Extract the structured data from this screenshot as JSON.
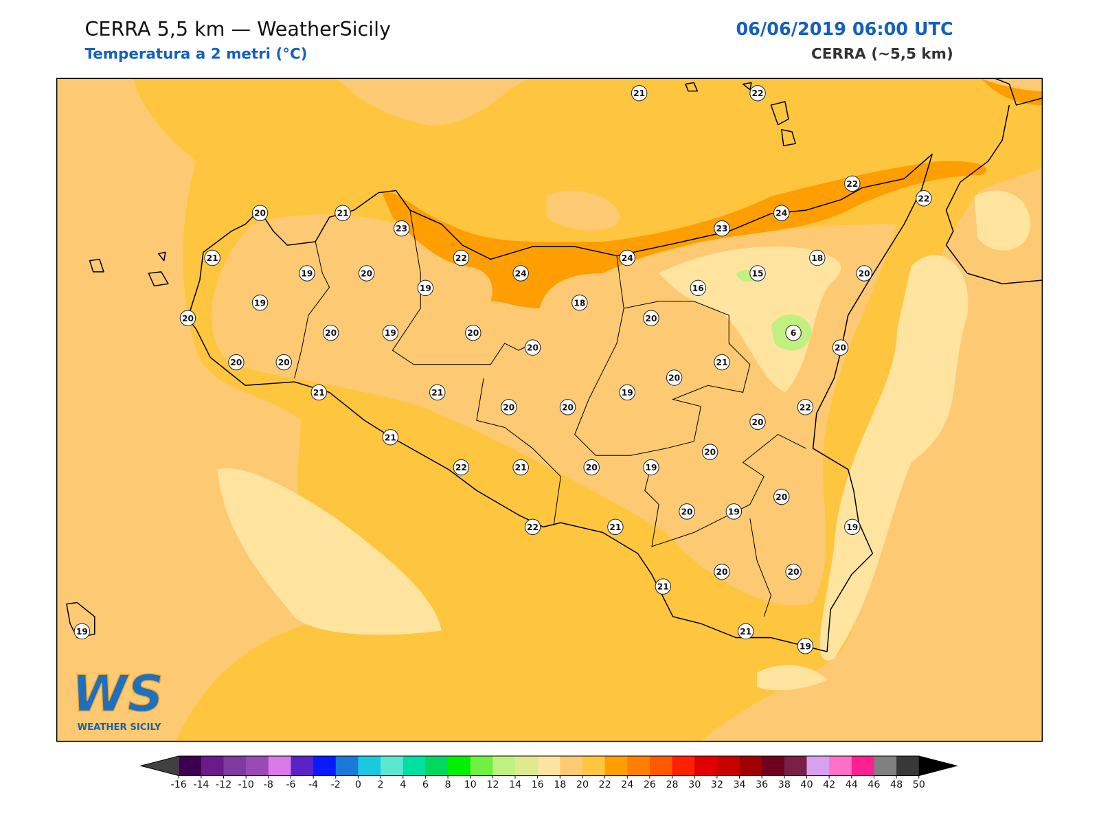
{
  "header": {
    "title": "CERRA 5,5 km — WeatherSicily",
    "subtitle": "Temperatura a 2 metri (°C)",
    "date": "06/06/2019 06:00 UTC",
    "model": "CERRA (~5,5 km)"
  },
  "stations": {
    "values": [
      21,
      22,
      20,
      21,
      23,
      22,
      22,
      24,
      23,
      21,
      19,
      20,
      22,
      24,
      24,
      18,
      15,
      20,
      19,
      16,
      19,
      18,
      20,
      20,
      6,
      20,
      19,
      20,
      20,
      20,
      20,
      20,
      21,
      20,
      21,
      21,
      19,
      22,
      20,
      20,
      20,
      21,
      20,
      22,
      21,
      20,
      19,
      20,
      20,
      19,
      19,
      22,
      21,
      20,
      20,
      21,
      21,
      19,
      19
    ]
  },
  "colorbar": {
    "ticks": [
      -16,
      -14,
      -12,
      -10,
      -8,
      -6,
      -4,
      -2,
      0,
      2,
      4,
      6,
      8,
      10,
      12,
      14,
      16,
      18,
      20,
      22,
      24,
      26,
      28,
      30,
      32,
      34,
      36,
      38,
      40,
      42,
      44,
      46,
      48,
      50
    ],
    "colors": [
      "#3d0050",
      "#6a1a8a",
      "#7f3aa0",
      "#9a4ab5",
      "#d97ae8",
      "#5a23c8",
      "#0a1aff",
      "#1a7ad8",
      "#1ac8e0",
      "#5ae8d0",
      "#00e0a0",
      "#00d860",
      "#00f000",
      "#70f040",
      "#c0f080",
      "#e0e890",
      "#ffe4a0",
      "#fdca73",
      "#fec63e",
      "#ff9e00",
      "#ff7f00",
      "#ff5a00",
      "#ff2000",
      "#e00000",
      "#c80000",
      "#a00000",
      "#700020",
      "#7a2048",
      "#d8a0f0",
      "#ff70c8",
      "#ff2090",
      "#808080",
      "#383838"
    ],
    "extend_colors": [
      "#404040",
      "#000000"
    ]
  },
  "logo": {
    "mark": "WS",
    "text": "WEATHER SICILY"
  }
}
